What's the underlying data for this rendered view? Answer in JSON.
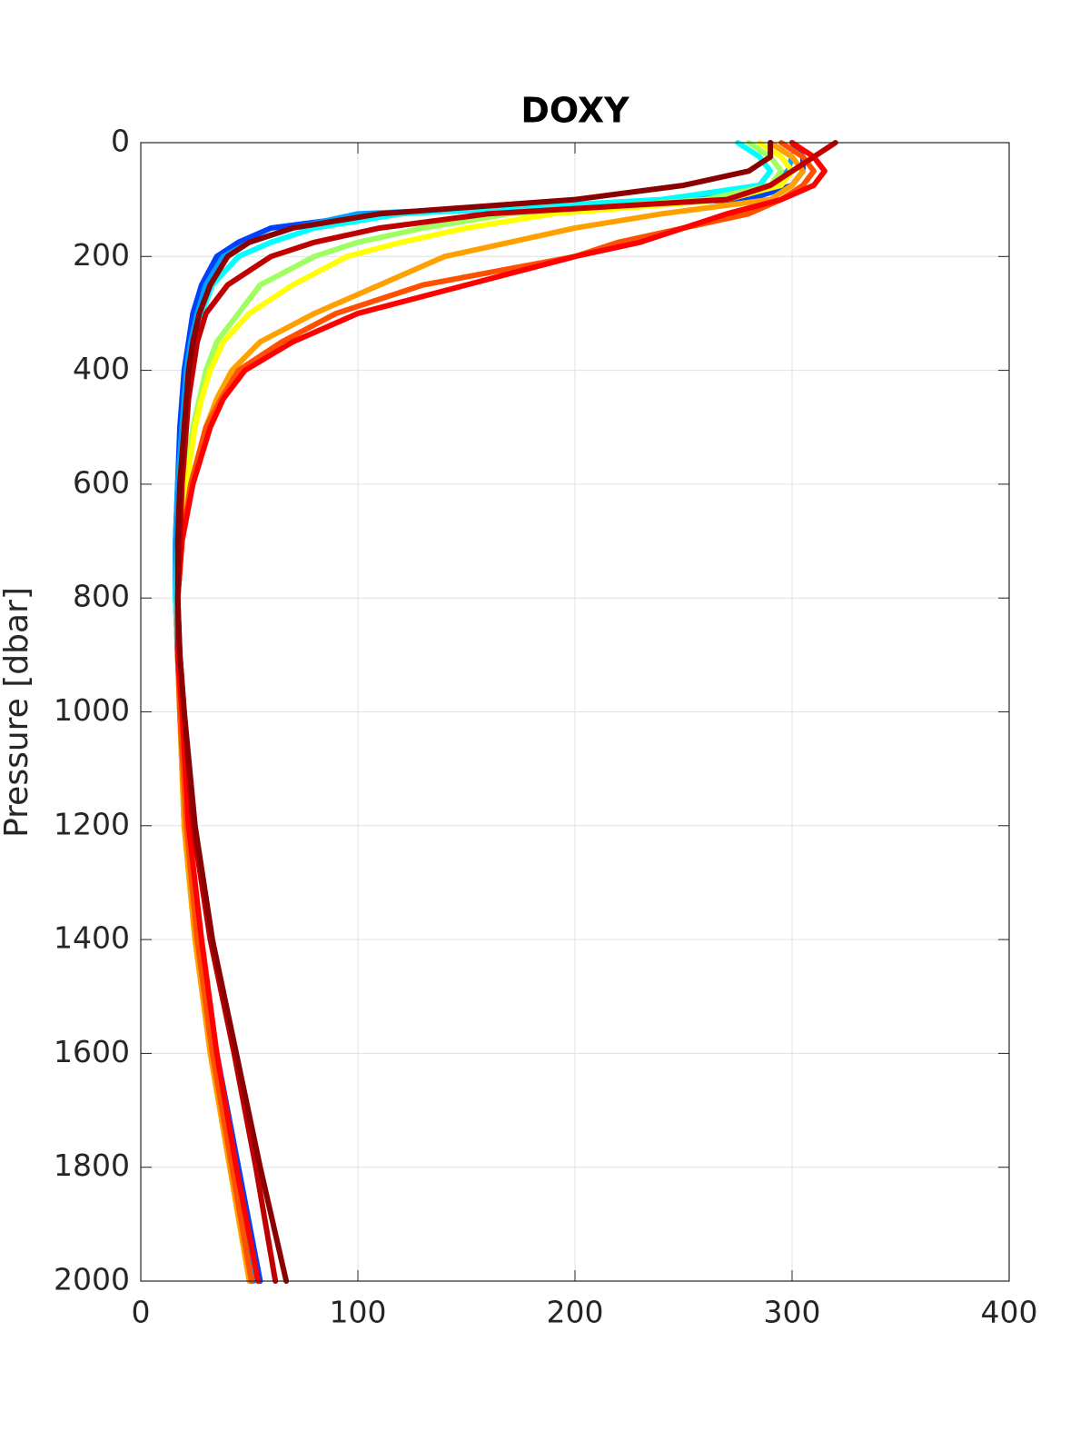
{
  "chart_data": {
    "type": "line",
    "title": "DOXY",
    "y_label": "Pressure [dbar]",
    "y": [
      0,
      25,
      50,
      75,
      100,
      125,
      150,
      175,
      200,
      250,
      300,
      350,
      400,
      450,
      500,
      600,
      700,
      800,
      900,
      1000,
      1200,
      1400,
      1600,
      1800,
      2000
    ],
    "xlim": [
      0,
      400
    ],
    "xticks": [
      0,
      100,
      200,
      300,
      400
    ],
    "ylim": [
      0,
      2000
    ],
    "yticks": [
      0,
      200,
      400,
      600,
      800,
      1000,
      1200,
      1400,
      1600,
      1800,
      2000
    ],
    "y_reversed": true,
    "grid": true,
    "series": [
      {
        "color": "#0040ff",
        "values": [
          300,
          305,
          305,
          300,
          280,
          110,
          60,
          45,
          35,
          28,
          24,
          22,
          20,
          19,
          18,
          17,
          16,
          16,
          17,
          18,
          20,
          25,
          35,
          45,
          55
        ]
      },
      {
        "color": "#00a0ff",
        "values": [
          290,
          300,
          298,
          290,
          250,
          100,
          70,
          50,
          38,
          30,
          26,
          23,
          21,
          20,
          19,
          17,
          16,
          16,
          17,
          18,
          20,
          26,
          35,
          44,
          52
        ]
      },
      {
        "color": "#00ffff",
        "values": [
          275,
          285,
          290,
          285,
          240,
          120,
          80,
          60,
          45,
          33,
          28,
          25,
          22,
          21,
          20,
          18,
          17,
          16,
          17,
          18,
          20,
          26,
          34,
          43,
          50
        ]
      },
      {
        "color": "#a0ff60",
        "values": [
          280,
          290,
          295,
          290,
          260,
          170,
          130,
          100,
          80,
          55,
          45,
          35,
          30,
          27,
          24,
          20,
          18,
          17,
          17,
          18,
          20,
          25,
          33,
          42,
          50
        ]
      },
      {
        "color": "#ffff00",
        "values": [
          285,
          295,
          300,
          295,
          270,
          190,
          150,
          120,
          95,
          70,
          50,
          38,
          32,
          28,
          25,
          21,
          18,
          17,
          17,
          18,
          20,
          25,
          33,
          42,
          50
        ]
      },
      {
        "color": "#ffa000",
        "values": [
          290,
          300,
          305,
          300,
          290,
          240,
          200,
          170,
          140,
          110,
          80,
          55,
          42,
          35,
          30,
          23,
          19,
          17,
          17,
          18,
          20,
          25,
          32,
          41,
          50
        ]
      },
      {
        "color": "#ff5000",
        "values": [
          295,
          305,
          310,
          305,
          295,
          280,
          250,
          220,
          200,
          130,
          90,
          65,
          45,
          37,
          30,
          23,
          19,
          17,
          17,
          18,
          21,
          26,
          33,
          42,
          51
        ]
      },
      {
        "color": "#ff0000",
        "values": [
          300,
          310,
          315,
          310,
          295,
          270,
          250,
          230,
          200,
          150,
          100,
          70,
          48,
          38,
          32,
          24,
          19,
          17,
          17,
          19,
          22,
          28,
          35,
          44,
          54
        ]
      },
      {
        "color": "#c00000",
        "values": [
          320,
          310,
          300,
          290,
          270,
          160,
          110,
          80,
          60,
          40,
          30,
          26,
          24,
          22,
          21,
          19,
          18,
          17,
          18,
          20,
          24,
          32,
          43,
          53,
          62
        ]
      },
      {
        "color": "#8b0000",
        "values": [
          290,
          290,
          280,
          250,
          200,
          110,
          70,
          50,
          40,
          32,
          27,
          24,
          22,
          21,
          20,
          18,
          17,
          17,
          18,
          20,
          25,
          33,
          44,
          55,
          67
        ]
      }
    ]
  }
}
